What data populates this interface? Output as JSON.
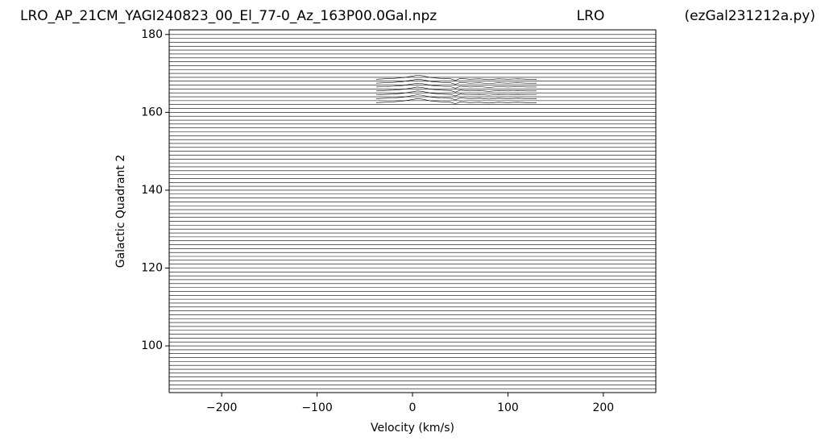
{
  "chart_data": {
    "type": "line",
    "title": "LRO_AP_21CM_YAGI240823_00_El_77-0_Az_163P00.0Gal.npz",
    "subtitle": "LRO",
    "annotation": "(ezGal231212a.py)",
    "x_label": "Velocity (km/s)",
    "y_label": "Galactic Quadrant 2",
    "xlim": [
      -255,
      255
    ],
    "ylim": [
      88,
      181.2
    ],
    "xticks": [
      {
        "value": -200,
        "label": "−200"
      },
      {
        "value": -100,
        "label": "−100"
      },
      0,
      100,
      200
    ],
    "yticks": [
      100,
      120,
      140,
      160,
      180
    ],
    "color": "#000000",
    "baselines": [
      89,
      90,
      91,
      92,
      93,
      94,
      95,
      96,
      97,
      98,
      99,
      100,
      101,
      102,
      103,
      104,
      105,
      106,
      107,
      108,
      109,
      110,
      111,
      112,
      113,
      114,
      115,
      116,
      117,
      118,
      119,
      120,
      121,
      122,
      123,
      124,
      125,
      126,
      127,
      128,
      129,
      130,
      131,
      132,
      133,
      134,
      135,
      136,
      137,
      138,
      139,
      140,
      141,
      142,
      143,
      144,
      145,
      146,
      147,
      148,
      149,
      150,
      151,
      152,
      153,
      154,
      155,
      156,
      157,
      158,
      159,
      160,
      161,
      162,
      163,
      164,
      165,
      166,
      167,
      168,
      169,
      170,
      171,
      172,
      173,
      174,
      175,
      176,
      177,
      178,
      179,
      180
    ],
    "x": [
      -38,
      -30,
      -20,
      -10,
      0,
      5,
      10,
      20,
      30,
      40,
      45,
      50,
      60,
      70,
      80,
      90,
      100,
      110,
      120,
      130
    ],
    "series": [
      {
        "color": "#000000",
        "values": [
          162.5,
          162.6,
          162.7,
          162.9,
          163.3,
          163.5,
          163.4,
          162.9,
          162.7,
          162.6,
          162.2,
          162.7,
          162.5,
          162.6,
          162.4,
          162.6,
          162.5,
          162.6,
          162.5,
          162.5
        ]
      },
      {
        "color": "#000000",
        "values": [
          163.5,
          163.6,
          163.7,
          163.9,
          164.3,
          164.5,
          164.4,
          163.9,
          163.7,
          163.6,
          163.2,
          163.7,
          163.5,
          163.6,
          163.4,
          163.6,
          163.5,
          163.6,
          163.5,
          163.5
        ]
      },
      {
        "color": "#000000",
        "values": [
          164.5,
          164.6,
          164.7,
          164.9,
          165.3,
          165.5,
          165.4,
          164.9,
          164.7,
          164.6,
          164.2,
          164.7,
          164.5,
          164.6,
          164.4,
          164.6,
          164.5,
          164.6,
          164.5,
          164.5
        ]
      },
      {
        "color": "#000000",
        "values": [
          165.5,
          165.6,
          165.7,
          165.9,
          166.3,
          166.5,
          166.4,
          165.9,
          165.7,
          165.6,
          165.2,
          165.7,
          165.5,
          165.6,
          165.4,
          165.6,
          165.5,
          165.6,
          165.5,
          165.5
        ]
      },
      {
        "color": "#000000",
        "values": [
          166.5,
          166.6,
          166.7,
          166.9,
          167.3,
          167.5,
          167.4,
          166.9,
          166.7,
          166.6,
          166.2,
          166.7,
          166.5,
          166.6,
          166.4,
          166.6,
          166.5,
          166.6,
          166.5,
          166.5
        ]
      },
      {
        "color": "#000000",
        "values": [
          167.5,
          167.6,
          167.7,
          167.9,
          168.3,
          168.5,
          168.4,
          167.9,
          167.7,
          167.6,
          167.2,
          167.7,
          167.5,
          167.6,
          167.4,
          167.6,
          167.5,
          167.6,
          167.5,
          167.5
        ]
      },
      {
        "color": "#000000",
        "values": [
          168.5,
          168.6,
          168.7,
          168.9,
          169.3,
          169.5,
          169.4,
          168.9,
          168.7,
          168.6,
          168.2,
          168.7,
          168.5,
          168.6,
          168.4,
          168.6,
          168.5,
          168.6,
          168.5,
          168.5
        ]
      }
    ]
  }
}
